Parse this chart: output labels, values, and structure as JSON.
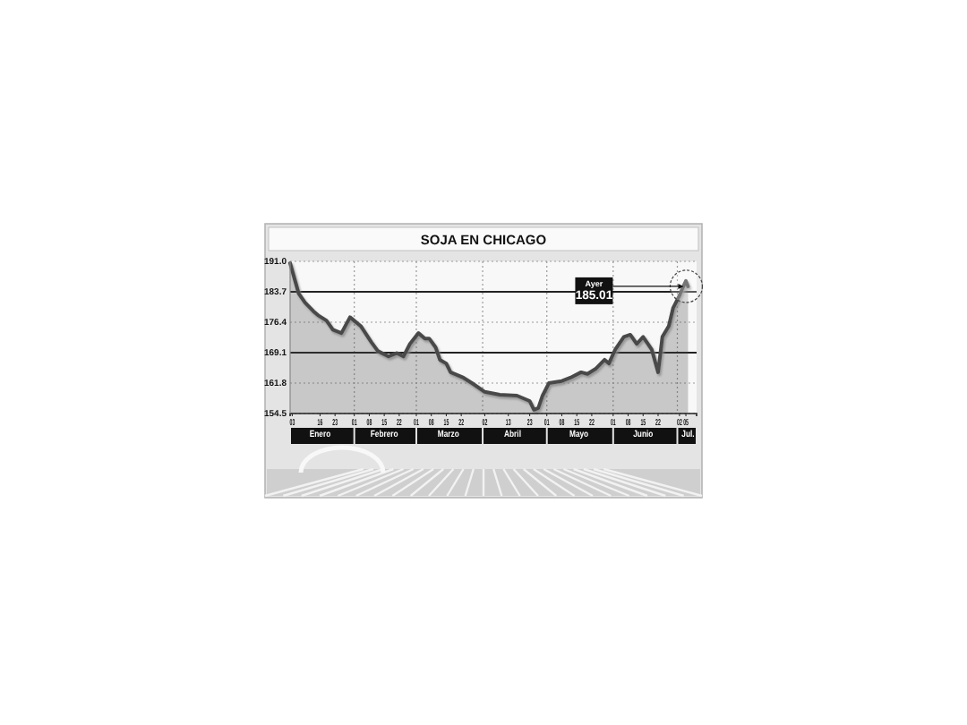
{
  "chart_data": {
    "type": "area",
    "title": "SOJA EN CHICAGO",
    "color": "#4a4a4a",
    "x": [
      "--01-02",
      "--01-06",
      "--01-09",
      "--01-13",
      "--01-15",
      "--01-19",
      "--01-22",
      "--01-26",
      "--01-30",
      "--02-04",
      "--02-09",
      "--02-12",
      "--02-17",
      "--02-21",
      "--02-24",
      "--02-27",
      "--03-02",
      "--03-05",
      "--03-07",
      "--03-10",
      "--03-12",
      "--03-15",
      "--03-17",
      "--03-23",
      "--03-27",
      "--04-02",
      "--04-09",
      "--04-17",
      "--04-23",
      "--04-25",
      "--04-27",
      "--04-29",
      "--05-02",
      "--05-08",
      "--05-12",
      "--05-17",
      "--05-20",
      "--05-24",
      "--05-28",
      "--05-30",
      "--06-02",
      "--06-06",
      "--06-09",
      "--06-12",
      "--06-15",
      "--06-19",
      "--06-22",
      "--06-24",
      "--06-27",
      "--06-29",
      "--07-02",
      "--07-03",
      "--07-05",
      "--07-06"
    ],
    "values": [
      190.6,
      183.3,
      181.1,
      179.0,
      178.1,
      176.8,
      174.6,
      173.8,
      177.6,
      175.5,
      171.6,
      169.5,
      168.2,
      169.0,
      168.2,
      171.2,
      173.8,
      172.5,
      172.5,
      170.4,
      167.4,
      166.5,
      164.4,
      163.1,
      161.8,
      159.7,
      159.0,
      158.8,
      157.5,
      155.4,
      155.8,
      158.8,
      161.8,
      162.3,
      163.1,
      164.4,
      164.0,
      165.3,
      167.4,
      166.5,
      169.9,
      172.9,
      173.4,
      171.2,
      172.9,
      169.9,
      164.4,
      172.9,
      175.5,
      179.8,
      182.8,
      184.1,
      186.3,
      185.01
    ],
    "xlim": [
      "--01-02",
      "--07-10"
    ],
    "xticks": [
      {
        "value": "--01-03",
        "label": "03"
      },
      {
        "value": "--01-16",
        "label": "16"
      },
      {
        "value": "--01-23",
        "label": "23"
      },
      {
        "value": "--02-01",
        "label": "01"
      },
      {
        "value": "--02-08",
        "label": "08"
      },
      {
        "value": "--02-15",
        "label": "15"
      },
      {
        "value": "--02-22",
        "label": "22"
      },
      {
        "value": "--03-01",
        "label": "01"
      },
      {
        "value": "--03-08",
        "label": "08"
      },
      {
        "value": "--03-15",
        "label": "15"
      },
      {
        "value": "--03-22",
        "label": "22"
      },
      {
        "value": "--04-02",
        "label": "02"
      },
      {
        "value": "--04-13",
        "label": "13"
      },
      {
        "value": "--04-23",
        "label": "23"
      },
      {
        "value": "--05-01",
        "label": "01"
      },
      {
        "value": "--05-08",
        "label": "08"
      },
      {
        "value": "--05-15",
        "label": "15"
      },
      {
        "value": "--05-22",
        "label": "22"
      },
      {
        "value": "--06-01",
        "label": "01"
      },
      {
        "value": "--06-08",
        "label": "08"
      },
      {
        "value": "--06-15",
        "label": "15"
      },
      {
        "value": "--06-22",
        "label": "22"
      },
      {
        "value": "--07-02",
        "label": "02"
      },
      {
        "value": "--07-05",
        "label": "05"
      }
    ],
    "x2lim": [
      "--01-02",
      "--07-10"
    ],
    "x2ticks": [
      {
        "value": "--01-16",
        "label": "Enero"
      },
      {
        "value": "--02-15",
        "label": "Febrero"
      },
      {
        "value": "--03-16",
        "label": "Marzo"
      },
      {
        "value": "--04-15",
        "label": "Abril"
      },
      {
        "value": "--05-16",
        "label": "Mayo"
      },
      {
        "value": "--06-15",
        "label": "Junio"
      },
      {
        "value": "--07-06",
        "label": "Jul."
      }
    ],
    "ylim": [
      154.5,
      191.0
    ],
    "yticks": [
      154.5,
      161.8,
      169.1,
      176.4,
      183.7,
      {
        "value": 191,
        "label": "191.0"
      }
    ],
    "grid": true,
    "annotations": [
      {
        "text": "Ayer\n185.01",
        "x": "--07-06",
        "y": 185.01
      }
    ]
  }
}
